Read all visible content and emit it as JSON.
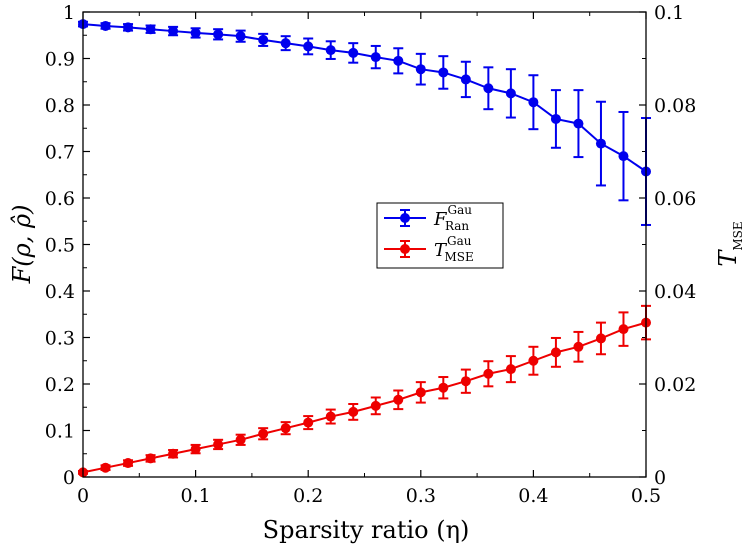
{
  "chart_data": {
    "type": "line",
    "title": "",
    "xlabel": "Sparsity ratio (η)",
    "ylabel_left": "F(ρ, ρ̂)",
    "ylabel_right_main": "T",
    "ylabel_right_sub": "MSE",
    "xlim": [
      0,
      0.5
    ],
    "ylim_left": [
      0,
      1
    ],
    "ylim_right": [
      0,
      0.1
    ],
    "x_ticks": [
      0,
      0.1,
      0.2,
      0.3,
      0.4,
      0.5
    ],
    "x_tick_labels": [
      "0",
      "0.1",
      "0.2",
      "0.3",
      "0.4",
      "0.5"
    ],
    "y_left_ticks": [
      0,
      0.1,
      0.2,
      0.3,
      0.4,
      0.5,
      0.6,
      0.7,
      0.8,
      0.9,
      1
    ],
    "y_left_tick_labels": [
      "0",
      "0.1",
      "0.2",
      "0.3",
      "0.4",
      "0.5",
      "0.6",
      "0.7",
      "0.8",
      "0.9",
      "1"
    ],
    "y_right_ticks": [
      0,
      0.02,
      0.04,
      0.06,
      0.08,
      0.1
    ],
    "y_right_tick_labels": [
      "0",
      "0.02",
      "0.04",
      "0.06",
      "0.08",
      "0.1"
    ],
    "legend_position": "center",
    "series": [
      {
        "name": "F_Ran^Gau",
        "legend_main": "F",
        "legend_sub": "Ran",
        "legend_sup": "Gau",
        "axis": "left",
        "color": "#0000ee",
        "x": [
          0,
          0.02,
          0.04,
          0.06,
          0.08,
          0.1,
          0.12,
          0.14,
          0.16,
          0.18,
          0.2,
          0.22,
          0.24,
          0.26,
          0.28,
          0.3,
          0.32,
          0.34,
          0.36,
          0.38,
          0.4,
          0.42,
          0.44,
          0.46,
          0.48,
          0.5
        ],
        "values": [
          0.974,
          0.97,
          0.967,
          0.963,
          0.959,
          0.955,
          0.952,
          0.948,
          0.94,
          0.933,
          0.926,
          0.918,
          0.912,
          0.903,
          0.895,
          0.877,
          0.87,
          0.855,
          0.836,
          0.825,
          0.806,
          0.77,
          0.76,
          0.717,
          0.69,
          0.657
        ],
        "errors": [
          0.005,
          0.006,
          0.007,
          0.008,
          0.009,
          0.01,
          0.011,
          0.012,
          0.013,
          0.015,
          0.017,
          0.019,
          0.021,
          0.024,
          0.027,
          0.033,
          0.035,
          0.038,
          0.045,
          0.052,
          0.058,
          0.062,
          0.072,
          0.09,
          0.095,
          0.115
        ]
      },
      {
        "name": "T_MSE^Gau",
        "legend_main": "T",
        "legend_sub": "MSE",
        "legend_sup": "Gau",
        "axis": "right",
        "color": "#ee0000",
        "x": [
          0,
          0.02,
          0.04,
          0.06,
          0.08,
          0.1,
          0.12,
          0.14,
          0.16,
          0.18,
          0.2,
          0.22,
          0.24,
          0.26,
          0.28,
          0.3,
          0.32,
          0.34,
          0.36,
          0.38,
          0.4,
          0.42,
          0.44,
          0.46,
          0.48,
          0.5
        ],
        "values": [
          0.001,
          0.002,
          0.003,
          0.004,
          0.005,
          0.006,
          0.007,
          0.008,
          0.0093,
          0.0105,
          0.0117,
          0.013,
          0.014,
          0.0153,
          0.0166,
          0.0182,
          0.0192,
          0.0206,
          0.0222,
          0.0232,
          0.025,
          0.0268,
          0.028,
          0.0298,
          0.0318,
          0.0332
        ],
        "errors": [
          0.0003,
          0.0005,
          0.0006,
          0.0007,
          0.0008,
          0.0009,
          0.001,
          0.0011,
          0.0012,
          0.0013,
          0.0014,
          0.0015,
          0.0017,
          0.0018,
          0.002,
          0.0022,
          0.0023,
          0.0025,
          0.0027,
          0.0028,
          0.003,
          0.0031,
          0.0032,
          0.0034,
          0.0036,
          0.0036
        ]
      }
    ]
  }
}
